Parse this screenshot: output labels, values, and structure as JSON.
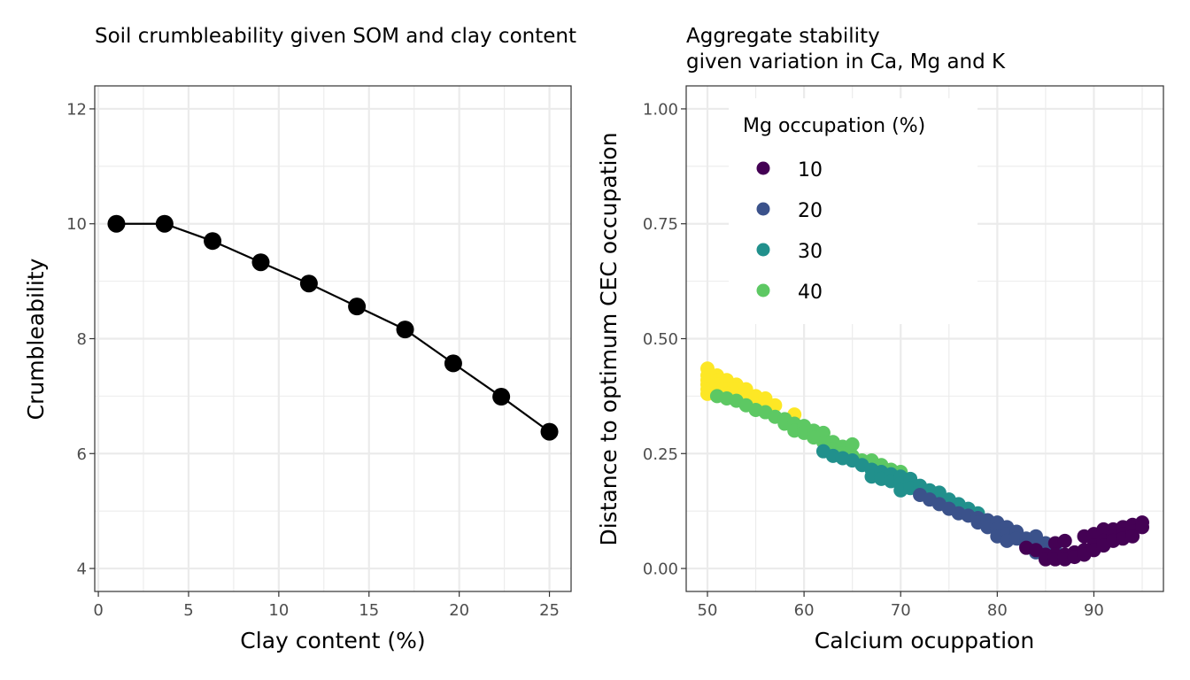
{
  "chart_data": [
    {
      "id": "left",
      "type": "line",
      "title": "Soil crumbleability given SOM and clay content",
      "xlabel": "Clay content (%)",
      "ylabel": "Crumbleability",
      "xlim": [
        -0.2,
        26.2
      ],
      "ylim": [
        3.6,
        12.4
      ],
      "xticks": [
        0,
        5,
        10,
        15,
        20,
        25
      ],
      "yticks": [
        4,
        6,
        8,
        10,
        12
      ],
      "xtick_labels": [
        "0",
        "5",
        "10",
        "15",
        "20",
        "25"
      ],
      "ytick_labels": [
        "4",
        "6",
        "8",
        "10",
        "12"
      ],
      "grid": true,
      "series": [
        {
          "name": "crumbleability",
          "color": "#000000",
          "x": [
            1,
            3.67,
            6.33,
            9,
            11.67,
            14.33,
            17,
            19.67,
            22.33,
            25
          ],
          "y": [
            10.0,
            10.0,
            9.7,
            9.33,
            8.96,
            8.56,
            8.16,
            7.57,
            6.99,
            6.38
          ]
        }
      ]
    },
    {
      "id": "right",
      "type": "scatter",
      "title_lines": [
        "Aggregate stability",
        "given variation in Ca, Mg and K"
      ],
      "xlabel": "Calcium ocuppation",
      "ylabel": "Distance to optimum CEC occupation",
      "xlim": [
        47.8,
        97.2
      ],
      "ylim": [
        -0.05,
        1.05
      ],
      "xticks": [
        50,
        60,
        70,
        80,
        90
      ],
      "yticks": [
        0,
        0.25,
        0.5,
        0.75,
        1.0
      ],
      "xtick_labels": [
        "50",
        "60",
        "70",
        "80",
        "90"
      ],
      "ytick_labels": [
        "0.00",
        "0.25",
        "0.50",
        "0.75",
        "1.00"
      ],
      "grid": true,
      "legend": {
        "title": "Mg occupation (%)",
        "placement": "top-left",
        "entries": [
          {
            "label": "10",
            "color": "#440154"
          },
          {
            "label": "20",
            "color": "#3B528B"
          },
          {
            "label": "30",
            "color": "#21908C"
          },
          {
            "label": "40",
            "color": "#5DC863"
          }
        ]
      },
      "series": [
        {
          "name": "50",
          "color": "#FDE725",
          "in_legend": false,
          "points": [
            [
              50,
              0.435
            ],
            [
              50,
              0.42
            ],
            [
              50,
              0.41
            ],
            [
              50,
              0.4
            ],
            [
              50,
              0.39
            ],
            [
              50,
              0.38
            ],
            [
              51,
              0.42
            ],
            [
              51,
              0.41
            ],
            [
              51,
              0.4
            ],
            [
              51,
              0.39
            ],
            [
              51,
              0.38
            ],
            [
              52,
              0.41
            ],
            [
              52,
              0.4
            ],
            [
              52,
              0.39
            ],
            [
              52,
              0.38
            ],
            [
              53,
              0.4
            ],
            [
              53,
              0.39
            ],
            [
              53,
              0.38
            ],
            [
              54,
              0.39
            ],
            [
              54,
              0.375
            ],
            [
              55,
              0.375
            ],
            [
              55,
              0.36
            ],
            [
              56,
              0.37
            ],
            [
              56,
              0.355
            ],
            [
              57,
              0.355
            ],
            [
              59,
              0.335
            ]
          ]
        },
        {
          "name": "40",
          "color": "#5DC863",
          "points": [
            [
              51,
              0.375
            ],
            [
              52,
              0.37
            ],
            [
              53,
              0.365
            ],
            [
              54,
              0.355
            ],
            [
              55,
              0.345
            ],
            [
              56,
              0.34
            ],
            [
              57,
              0.33
            ],
            [
              58,
              0.325
            ],
            [
              58,
              0.315
            ],
            [
              59,
              0.315
            ],
            [
              59,
              0.3
            ],
            [
              60,
              0.31
            ],
            [
              60,
              0.295
            ],
            [
              61,
              0.3
            ],
            [
              61,
              0.285
            ],
            [
              62,
              0.295
            ],
            [
              62,
              0.275
            ],
            [
              63,
              0.275
            ],
            [
              63,
              0.26
            ],
            [
              64,
              0.265
            ],
            [
              64,
              0.25
            ],
            [
              65,
              0.27
            ],
            [
              65,
              0.245
            ],
            [
              66,
              0.235
            ],
            [
              67,
              0.235
            ],
            [
              68,
              0.225
            ],
            [
              69,
              0.215
            ],
            [
              70,
              0.21
            ]
          ]
        },
        {
          "name": "30",
          "color": "#21908C",
          "points": [
            [
              62,
              0.255
            ],
            [
              63,
              0.245
            ],
            [
              64,
              0.24
            ],
            [
              65,
              0.235
            ],
            [
              66,
              0.225
            ],
            [
              67,
              0.215
            ],
            [
              67,
              0.2
            ],
            [
              68,
              0.21
            ],
            [
              68,
              0.195
            ],
            [
              69,
              0.205
            ],
            [
              69,
              0.19
            ],
            [
              70,
              0.2
            ],
            [
              70,
              0.185
            ],
            [
              70,
              0.17
            ],
            [
              71,
              0.195
            ],
            [
              71,
              0.175
            ],
            [
              72,
              0.18
            ],
            [
              72,
              0.165
            ],
            [
              73,
              0.17
            ],
            [
              73,
              0.155
            ],
            [
              74,
              0.165
            ],
            [
              74,
              0.15
            ],
            [
              75,
              0.15
            ],
            [
              75,
              0.14
            ],
            [
              76,
              0.14
            ],
            [
              76,
              0.13
            ],
            [
              77,
              0.13
            ],
            [
              78,
              0.12
            ]
          ]
        },
        {
          "name": "20",
          "color": "#3B528B",
          "points": [
            [
              72,
              0.16
            ],
            [
              73,
              0.15
            ],
            [
              74,
              0.14
            ],
            [
              75,
              0.13
            ],
            [
              76,
              0.12
            ],
            [
              77,
              0.115
            ],
            [
              78,
              0.11
            ],
            [
              78,
              0.1
            ],
            [
              79,
              0.105
            ],
            [
              79,
              0.09
            ],
            [
              80,
              0.1
            ],
            [
              80,
              0.085
            ],
            [
              80,
              0.07
            ],
            [
              81,
              0.09
            ],
            [
              81,
              0.075
            ],
            [
              81,
              0.06
            ],
            [
              82,
              0.08
            ],
            [
              82,
              0.065
            ],
            [
              83,
              0.065
            ],
            [
              83,
              0.05
            ],
            [
              84,
              0.07
            ],
            [
              84,
              0.045
            ],
            [
              84,
              0.035
            ],
            [
              85,
              0.055
            ],
            [
              85,
              0.04
            ],
            [
              86,
              0.05
            ],
            [
              86,
              0.035
            ]
          ]
        },
        {
          "name": "10",
          "color": "#440154",
          "points": [
            [
              83,
              0.045
            ],
            [
              84,
              0.04
            ],
            [
              85,
              0.03
            ],
            [
              85,
              0.02
            ],
            [
              86,
              0.055
            ],
            [
              86,
              0.03
            ],
            [
              86,
              0.02
            ],
            [
              87,
              0.06
            ],
            [
              87,
              0.03
            ],
            [
              87,
              0.02
            ],
            [
              88,
              0.035
            ],
            [
              88,
              0.025
            ],
            [
              89,
              0.07
            ],
            [
              89,
              0.04
            ],
            [
              89,
              0.03
            ],
            [
              90,
              0.075
            ],
            [
              90,
              0.05
            ],
            [
              90,
              0.04
            ],
            [
              91,
              0.085
            ],
            [
              91,
              0.06
            ],
            [
              91,
              0.05
            ],
            [
              92,
              0.085
            ],
            [
              92,
              0.07
            ],
            [
              92,
              0.06
            ],
            [
              93,
              0.09
            ],
            [
              93,
              0.075
            ],
            [
              93,
              0.065
            ],
            [
              94,
              0.095
            ],
            [
              94,
              0.08
            ],
            [
              94,
              0.07
            ],
            [
              95,
              0.1
            ],
            [
              95,
              0.09
            ]
          ]
        }
      ]
    }
  ]
}
